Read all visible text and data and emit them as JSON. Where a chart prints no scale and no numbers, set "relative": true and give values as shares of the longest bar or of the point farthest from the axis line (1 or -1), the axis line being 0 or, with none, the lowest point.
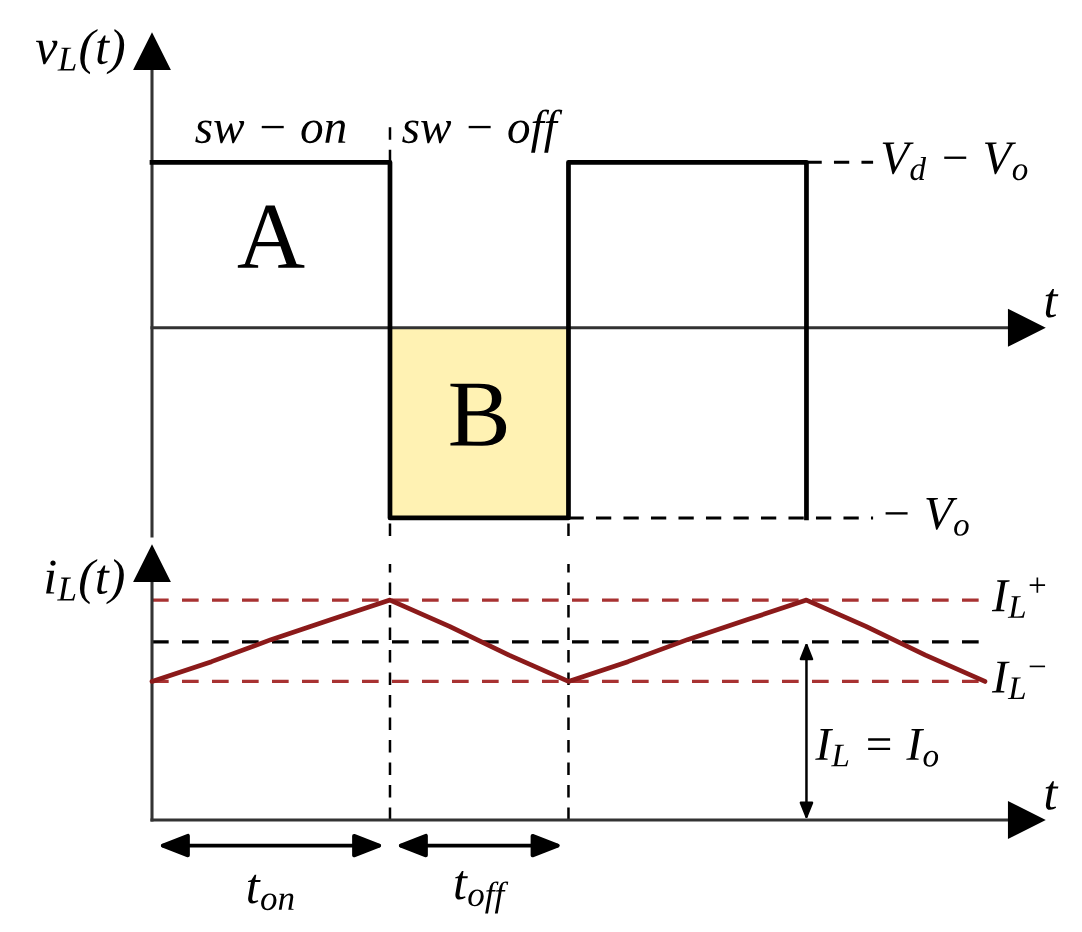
{
  "chart_data": [
    {
      "type": "step",
      "relative": true,
      "xlabel": "t",
      "ylabel": "v$_{L}$(t)",
      "categories": [
        null,
        null,
        null,
        null,
        null,
        null,
        null,
        null,
        null,
        null,
        null,
        null,
        null,
        null,
        null
      ],
      "series": [
        {
          "type": "area",
          "color": "#fff2b3",
          "values": [
            null,
            null,
            null,
            null,
            -1,
            -1,
            -1,
            -1,
            null,
            null,
            null,
            null,
            null,
            null,
            null
          ]
        },
        {
          "color": "#000000",
          "values": [
            0.87,
            0.87,
            0.87,
            0.87,
            -1,
            -1,
            -1,
            0.87,
            0.87,
            0.87,
            0.87,
            -1,
            null,
            null,
            null
          ]
        }
      ],
      "ref_lines": [
        {
          "axis": "y",
          "value": 0.87,
          "label": "V$_{d}$ − V$_{o}$",
          "color": "#000000",
          "line_style": "dashed"
        },
        {
          "axis": "y",
          "value": -1,
          "label": "− V$_{o}$",
          "color": "#000000",
          "line_style": "dashed"
        }
      ],
      "annotations": [
        "sw − on",
        "sw − off",
        "A",
        "B"
      ]
    },
    {
      "type": "line",
      "relative": true,
      "xlabel": "t",
      "ylabel": "i$_{L}$(t)",
      "categories": [
        null,
        null,
        null,
        null,
        null,
        null,
        null,
        null,
        null,
        null,
        null,
        null,
        null,
        null,
        null
      ],
      "series": [
        {
          "color": "#8b1a1a",
          "values": [
            0.63,
            0.72,
            0.82,
            0.91,
            1,
            0.88,
            0.75,
            0.63,
            0.72,
            0.82,
            0.91,
            1,
            0.88,
            0.75,
            0.63
          ]
        }
      ],
      "ref_lines": [
        {
          "axis": "y",
          "value": 1,
          "label": "I$_{L}$$^{+}$",
          "color": "#a83232",
          "line_style": "dashed"
        },
        {
          "axis": "y",
          "value": 0.63,
          "label": "I$_{L}$$^{−}$",
          "color": "#a83232",
          "line_style": "dashed"
        },
        {
          "axis": "y",
          "value": 0.81,
          "color": "#000000",
          "line_style": "dashed"
        }
      ],
      "annotations": [
        "t$_{on}$",
        "t$_{off}$",
        {
          "text": "I$_{L}$ = I$_{o}$",
          "y": 0.81
        }
      ]
    }
  ]
}
